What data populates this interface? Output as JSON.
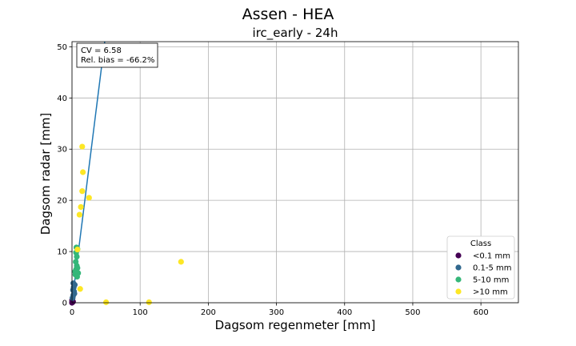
{
  "chart_data": {
    "type": "scatter",
    "title": "Assen - HEA",
    "subtitle": "irc_early - 24h",
    "xlabel": "Dagsom regenmeter [mm]",
    "ylabel": "Dagsom radar [mm]",
    "xlim": [
      0,
      655
    ],
    "ylim": [
      0,
      51
    ],
    "x_ticks": [
      0,
      100,
      200,
      300,
      400,
      500,
      600
    ],
    "y_ticks": [
      0,
      10,
      20,
      30,
      40,
      50
    ],
    "grid": true,
    "legend_position": "lower-right",
    "legend_title": "Class",
    "stats_box": {
      "cv": "CV = 6.58",
      "bias": "Rel. bias = -66.2%"
    },
    "fit_line": {
      "color": "#1f77b4",
      "points": [
        [
          0,
          0
        ],
        [
          48,
          51
        ]
      ]
    },
    "series": [
      {
        "name": "<0.1 mm",
        "color": "#440154",
        "points": [
          [
            0,
            0
          ],
          [
            0.3,
            0.2
          ],
          [
            0.5,
            0.1
          ],
          [
            1,
            0.3
          ],
          [
            0.2,
            0.5
          ],
          [
            1.5,
            0.2
          ]
        ]
      },
      {
        "name": "0.1-5 mm",
        "color": "#31688e",
        "points": [
          [
            1,
            1.0
          ],
          [
            2,
            1.5
          ],
          [
            3,
            2.2
          ],
          [
            2.5,
            3.0
          ],
          [
            4,
            3.5
          ],
          [
            1.5,
            2.5
          ],
          [
            3.5,
            1.8
          ],
          [
            2,
            3.8
          ],
          [
            0.8,
            0.9
          ]
        ]
      },
      {
        "name": "5-10 mm",
        "color": "#35b779",
        "points": [
          [
            5,
            5.5
          ],
          [
            6,
            6.5
          ],
          [
            7,
            7.2
          ],
          [
            5.5,
            8.0
          ],
          [
            7,
            9.0
          ],
          [
            6,
            9.8
          ],
          [
            8,
            10.5
          ],
          [
            6.5,
            10.8
          ],
          [
            9,
            5.8
          ],
          [
            8,
            6.8
          ],
          [
            4.5,
            6.1
          ],
          [
            7.5,
            5.1
          ]
        ]
      },
      {
        "name": ">10 mm",
        "color": "#fde725",
        "points": [
          [
            15,
            30.5
          ],
          [
            16,
            25.5
          ],
          [
            15,
            21.8
          ],
          [
            25,
            20.5
          ],
          [
            13,
            18.7
          ],
          [
            11,
            17.2
          ],
          [
            8,
            10.4
          ],
          [
            12,
            2.7
          ],
          [
            50,
            0.1
          ],
          [
            113,
            0.1
          ],
          [
            160,
            8.0
          ]
        ]
      }
    ]
  }
}
